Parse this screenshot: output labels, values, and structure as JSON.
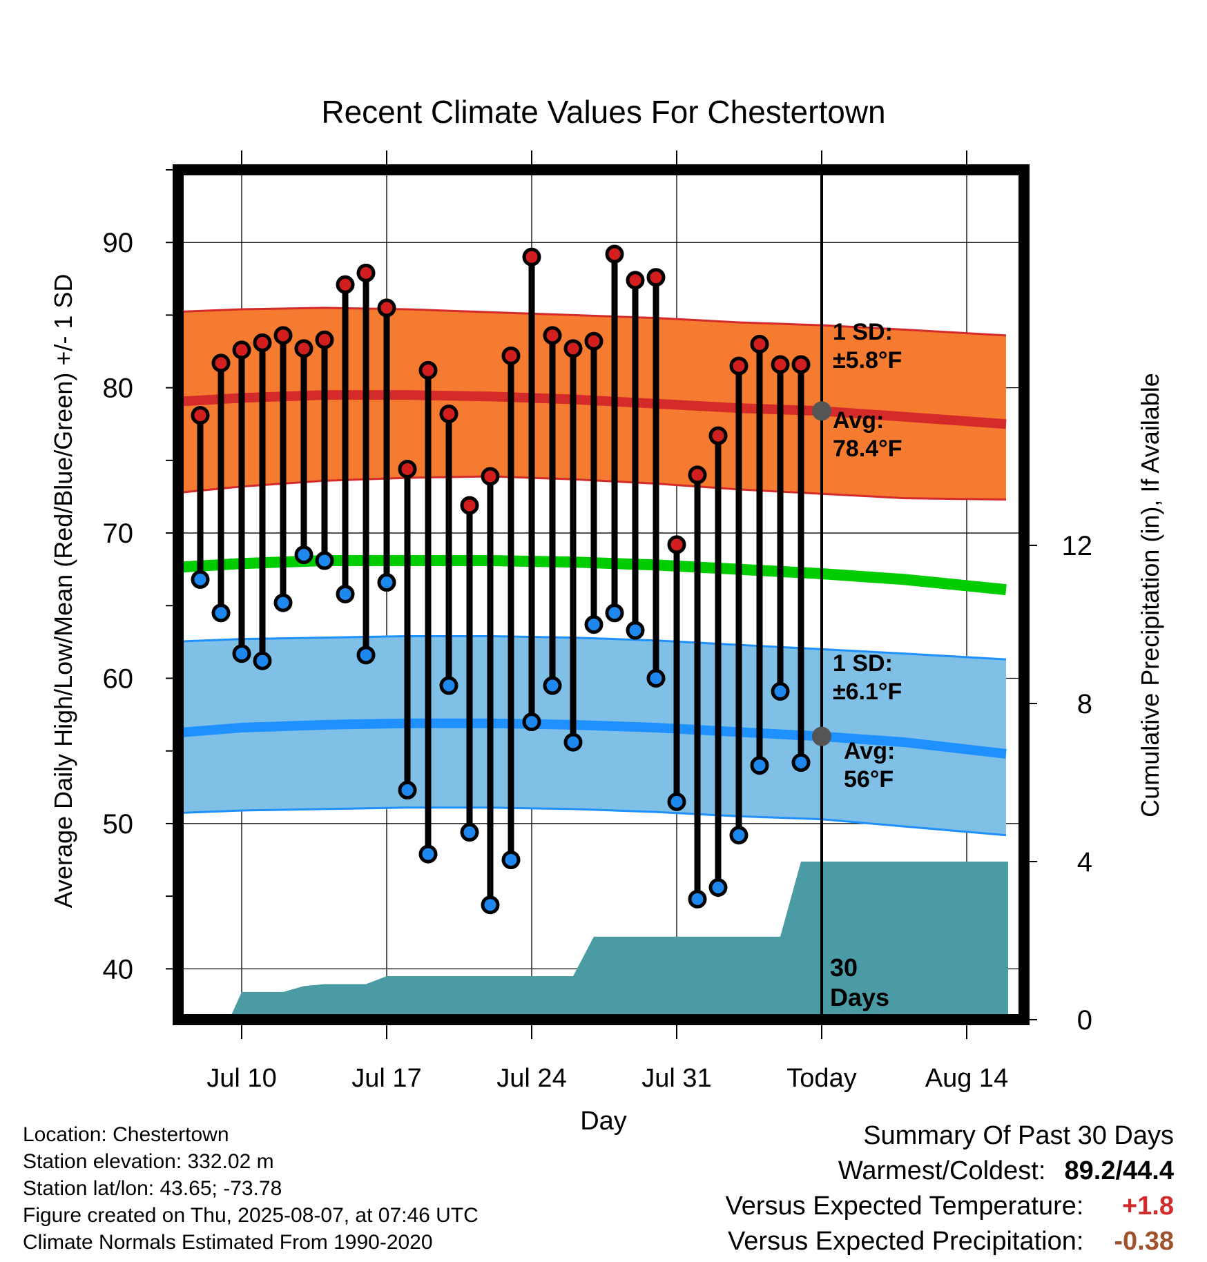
{
  "chart_data": {
    "type": "line",
    "title": "Recent Climate Values For Chestertown",
    "xlabel": "Day",
    "ylabel": "Average Daily High/Low/Mean (Red/Blue/Green) +/- 1 SD",
    "y2label": "Cumulative Precipitation (in), If Available",
    "ylim": [
      36.5,
      95
    ],
    "y2lim": [
      0,
      21.5
    ],
    "y2_ticks": [
      0,
      4,
      8,
      12
    ],
    "xlim": [
      -3.8,
      37
    ],
    "x_ticks": [
      {
        "x": 0,
        "label": "Jul 10"
      },
      {
        "x": 7,
        "label": "Jul 17"
      },
      {
        "x": 14,
        "label": "Jul 24"
      },
      {
        "x": 21,
        "label": "Jul 31"
      },
      {
        "x": 28,
        "label": "Today"
      },
      {
        "x": 35,
        "label": "Aug 14"
      }
    ],
    "y_ticks": [
      40,
      50,
      60,
      70,
      80,
      90
    ],
    "grid": true,
    "observed": {
      "days": [
        -2,
        -1,
        0,
        1,
        2,
        3,
        4,
        5,
        6,
        7,
        8,
        9,
        10,
        11,
        12,
        13,
        14,
        15,
        16,
        17,
        18,
        19,
        20,
        21,
        22,
        23,
        24,
        25,
        26,
        27
      ],
      "high": [
        78.1,
        81.7,
        82.6,
        83.1,
        83.6,
        82.7,
        83.3,
        87.1,
        87.9,
        85.5,
        74.4,
        81.2,
        78.2,
        71.9,
        73.9,
        82.2,
        89.0,
        83.6,
        82.7,
        83.2,
        89.2,
        87.4,
        87.6,
        69.2,
        74.0,
        76.7,
        81.5,
        83.0,
        81.6,
        81.6
      ],
      "low": [
        66.8,
        64.5,
        61.7,
        61.2,
        65.2,
        68.5,
        68.1,
        65.8,
        61.6,
        66.6,
        52.3,
        47.9,
        59.5,
        49.4,
        44.4,
        47.5,
        57.0,
        59.5,
        55.6,
        63.7,
        64.5,
        63.3,
        60.0,
        51.5,
        44.8,
        45.6,
        49.2,
        54.0,
        59.1,
        54.2
      ]
    },
    "normals": {
      "days": [
        -3.6,
        0,
        4,
        8,
        12,
        16,
        20,
        24,
        28,
        32,
        36.9
      ],
      "avg_high": [
        79.0,
        79.3,
        79.5,
        79.5,
        79.4,
        79.2,
        78.9,
        78.6,
        78.4,
        78.0,
        77.5
      ],
      "high_upper": [
        85.2,
        85.4,
        85.5,
        85.4,
        85.2,
        85.0,
        84.8,
        84.5,
        84.3,
        84.0,
        83.6
      ],
      "high_lower": [
        72.7,
        73.2,
        73.6,
        73.8,
        73.9,
        73.7,
        73.4,
        73.0,
        72.7,
        72.4,
        72.3
      ],
      "avg_mean": [
        67.6,
        67.9,
        68.1,
        68.1,
        68.1,
        68.0,
        67.8,
        67.5,
        67.2,
        66.8,
        66.1
      ],
      "avg_low": [
        56.2,
        56.6,
        56.8,
        56.9,
        56.9,
        56.8,
        56.6,
        56.3,
        56.0,
        55.6,
        54.8
      ],
      "low_upper": [
        62.5,
        62.7,
        62.8,
        62.9,
        62.9,
        62.8,
        62.6,
        62.3,
        62.0,
        61.7,
        61.3
      ],
      "low_lower": [
        50.7,
        50.9,
        51.0,
        51.1,
        51.1,
        51.0,
        50.8,
        50.5,
        50.3,
        49.8,
        49.2
      ]
    },
    "precip_cumulative": {
      "days": [
        -3.8,
        -0.6,
        0,
        2,
        3,
        4,
        6,
        7,
        16,
        17,
        26,
        27,
        37
      ],
      "values": [
        0,
        0,
        0.7,
        0.7,
        0.85,
        0.9,
        0.9,
        1.1,
        1.1,
        2.1,
        2.1,
        4.0,
        4.0
      ],
      "color": "#4a9ba4"
    },
    "today_marker": {
      "x": 28,
      "avg_high": 78.4,
      "avg_low": 56.0
    },
    "annotations": {
      "high_sd_line1": "1 SD:",
      "high_sd_line2": "±5.8°F",
      "high_avg_line1": "Avg:",
      "high_avg_line2": "78.4°F",
      "low_sd_line1": "1 SD:",
      "low_sd_line2": "±6.1°F",
      "low_avg_line1": "Avg:",
      "low_avg_line2": "56°F",
      "window_line1": "30",
      "window_line2": "Days"
    },
    "colors": {
      "high_band": "#f47b30",
      "high_line": "#d52a2a",
      "mean_line": "#00cc00",
      "low_band": "#80c0e6",
      "low_line": "#1e90ff",
      "high_dot": "#d21e1e",
      "low_dot": "#1e88ee",
      "annotation": "#555555"
    }
  },
  "info": {
    "location": "Location: Chestertown",
    "elevation": "Station elevation: 332.02 m",
    "latlon": "Station lat/lon: 43.65; -73.78",
    "created": "Figure created on Thu, 2025-08-07, at 07:46 UTC",
    "normals": "Climate Normals Estimated From 1990-2020"
  },
  "summary": {
    "heading": "Summary Of Past 30 Days",
    "warmest_label": "Warmest/Coldest:",
    "warmest_value": "89.2/44.4",
    "temp_label": "Versus Expected Temperature:",
    "temp_value": "+1.8",
    "temp_color": "#d22b2b",
    "precip_label": "Versus Expected Precipitation:",
    "precip_value": "-0.38",
    "precip_color": "#a0522d"
  }
}
